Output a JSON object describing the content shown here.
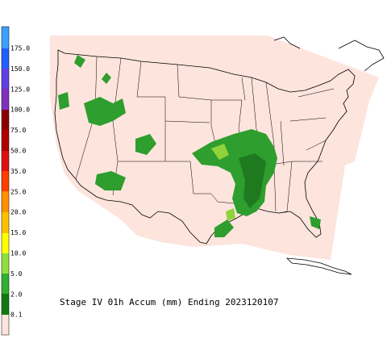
{
  "title": "Stage IV 01h Accum (mm) Ending 2023120107",
  "legend": {
    "labels": [
      "175.0",
      "150.0",
      "125.0",
      "100.0",
      "75.0",
      "50.0",
      "35.0",
      "25.0",
      "20.0",
      "15.0",
      "10.0",
      "5.0",
      "2.0",
      "0.1"
    ]
  }
}
